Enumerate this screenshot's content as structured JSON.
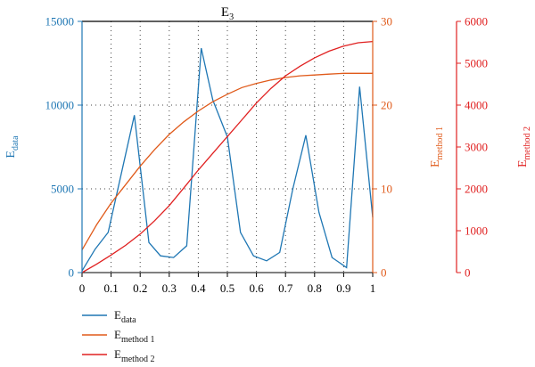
{
  "chart_data": {
    "type": "line",
    "title": "E",
    "title_sub": "3",
    "grid": true,
    "legend_position": "bottom-left",
    "x": {
      "range": [
        0,
        1
      ],
      "ticks": [
        "0",
        "0.1",
        "0.2",
        "0.3",
        "0.4",
        "0.5",
        "0.6",
        "0.7",
        "0.8",
        "0.9",
        "1"
      ]
    },
    "axes": [
      {
        "id": "left",
        "label": "E",
        "label_sub": "data",
        "range": [
          0,
          15000
        ],
        "ticks": [
          "0",
          "5000",
          "10000",
          "15000"
        ],
        "color": "#1f77b4"
      },
      {
        "id": "right1",
        "label": "E",
        "label_sub": "method 1",
        "range": [
          0,
          30
        ],
        "ticks": [
          "0",
          "10",
          "20",
          "30"
        ],
        "color": "#e05a1a"
      },
      {
        "id": "right2",
        "label": "E",
        "label_sub": "method 2",
        "range": [
          0,
          6000
        ],
        "ticks": [
          "0",
          "1000",
          "2000",
          "3000",
          "4000",
          "5000",
          "6000"
        ],
        "color": "#e02020"
      }
    ],
    "series": [
      {
        "name": "E",
        "name_sub": "data",
        "axis": "left",
        "color": "#1f77b4",
        "x": [
          0,
          0.045,
          0.09,
          0.18,
          0.23,
          0.27,
          0.315,
          0.36,
          0.41,
          0.45,
          0.5,
          0.545,
          0.59,
          0.635,
          0.68,
          0.725,
          0.77,
          0.815,
          0.86,
          0.91,
          0.955,
          1.0
        ],
        "y": [
          100,
          1400,
          2400,
          9400,
          1800,
          1000,
          900,
          1600,
          13400,
          10300,
          8100,
          2400,
          1000,
          700,
          1200,
          5000,
          8200,
          3600,
          900,
          300,
          11100,
          3300
        ]
      },
      {
        "name": "E",
        "name_sub": "method 1",
        "axis": "right1",
        "color": "#e05a1a",
        "x": [
          0,
          0.05,
          0.1,
          0.15,
          0.2,
          0.25,
          0.3,
          0.35,
          0.4,
          0.45,
          0.5,
          0.55,
          0.6,
          0.65,
          0.7,
          0.75,
          0.8,
          0.85,
          0.9,
          0.95,
          1.0
        ],
        "y": [
          2.7,
          5.7,
          8.3,
          10.5,
          12.7,
          14.7,
          16.5,
          18.0,
          19.3,
          20.4,
          21.3,
          22.1,
          22.6,
          23.0,
          23.3,
          23.5,
          23.6,
          23.7,
          23.8,
          23.8,
          23.8
        ]
      },
      {
        "name": "E",
        "name_sub": "method 2",
        "axis": "right2",
        "color": "#e02020",
        "x": [
          0,
          0.05,
          0.1,
          0.15,
          0.2,
          0.25,
          0.3,
          0.35,
          0.4,
          0.45,
          0.5,
          0.55,
          0.6,
          0.65,
          0.7,
          0.75,
          0.8,
          0.85,
          0.9,
          0.95,
          1.0
        ],
        "y": [
          0,
          200,
          420,
          650,
          920,
          1240,
          1600,
          2020,
          2450,
          2850,
          3250,
          3650,
          4050,
          4400,
          4700,
          4930,
          5130,
          5290,
          5410,
          5490,
          5520
        ]
      }
    ]
  }
}
